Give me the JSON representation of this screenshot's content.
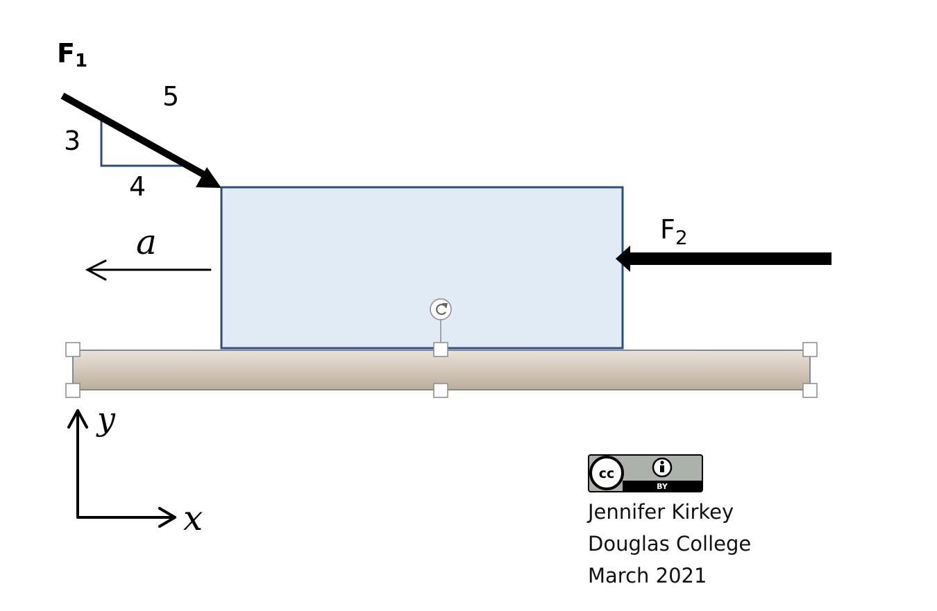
{
  "forces": {
    "f1": {
      "symbol": "F",
      "subscript": "1"
    },
    "f2": {
      "symbol": "F",
      "subscript": "2"
    }
  },
  "triangle": {
    "hypotenuse": "5",
    "vertical": "3",
    "horizontal": "4"
  },
  "acceleration": {
    "label": "a"
  },
  "axes": {
    "y_label": "y",
    "x_label": "x"
  },
  "license": {
    "top": "cc",
    "by": "BY"
  },
  "credit": {
    "author": "Jennifer Kirkey",
    "institution": "Douglas College",
    "date": "March 2021"
  },
  "colors": {
    "block_fill": "#e1ebf6",
    "block_stroke": "#2f4c7e",
    "floor_top": "#e8e1d8",
    "floor_bottom": "#bdb09e",
    "arrow": "#000000"
  },
  "icons": {
    "rotate_handle": "rotate-icon",
    "license": "creative-commons-by-icon"
  }
}
